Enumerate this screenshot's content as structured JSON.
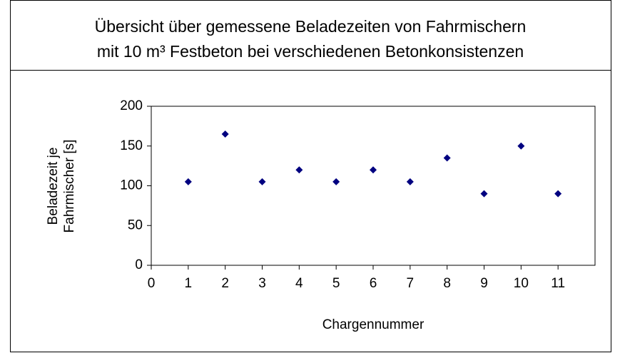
{
  "chart_data": {
    "type": "scatter",
    "title": [
      "Übersicht über gemessene Beladezeiten von Fahrmischern",
      "mit 10 m³ Festbeton bei verschiedenen Betonkonsistenzen"
    ],
    "xlabel": "Chargennummer",
    "ylabel": [
      "Beladezeit je",
      "Fahrmischer [s]"
    ],
    "x": [
      1,
      2,
      3,
      4,
      5,
      6,
      7,
      8,
      9,
      10,
      11
    ],
    "series": [
      {
        "color": "#000080",
        "values": [
          105,
          165,
          105,
          120,
          105,
          120,
          105,
          135,
          90,
          150,
          90
        ]
      }
    ],
    "xlim": [
      0,
      12
    ],
    "xticks": [
      0,
      1,
      2,
      3,
      4,
      5,
      6,
      7,
      8,
      9,
      10,
      11
    ],
    "ylim": [
      0,
      200
    ],
    "yticks": [
      0,
      50,
      100,
      150,
      200
    ]
  }
}
